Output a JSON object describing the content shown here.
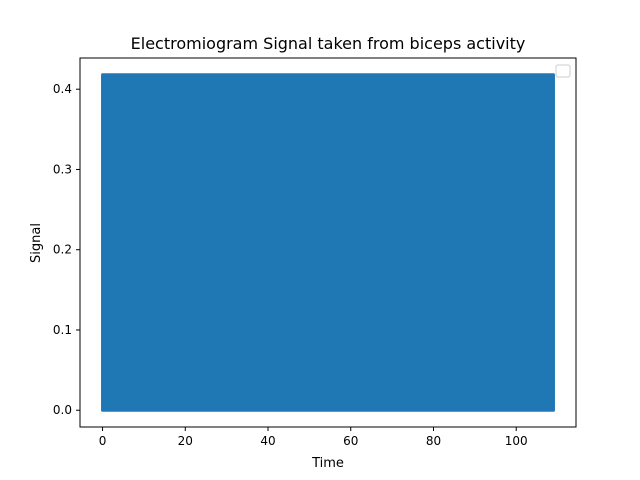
{
  "chart_data": {
    "type": "area",
    "title": "Electromiogram Signal taken from biceps activity",
    "xlabel": "Time",
    "ylabel": "Signal",
    "xlim": [
      -5.45,
      114.45
    ],
    "ylim": [
      -0.0209,
      0.4389
    ],
    "xticks": [
      0,
      20,
      40,
      60,
      80,
      100
    ],
    "yticks": [
      0.0,
      0.1,
      0.2,
      0.3,
      0.4
    ],
    "xtick_labels": [
      "0",
      "20",
      "40",
      "60",
      "80",
      "100"
    ],
    "ytick_labels": [
      "0.0",
      "0.1",
      "0.2",
      "0.3",
      "0.4"
    ],
    "series": [
      {
        "x": [
          0,
          109
        ],
        "y_min": [
          0.0,
          0.0
        ],
        "y_max": [
          0.418,
          0.418
        ],
        "color": "#1f77b4"
      }
    ],
    "legend": {
      "position": "upper right",
      "entries": []
    },
    "grid": false
  }
}
